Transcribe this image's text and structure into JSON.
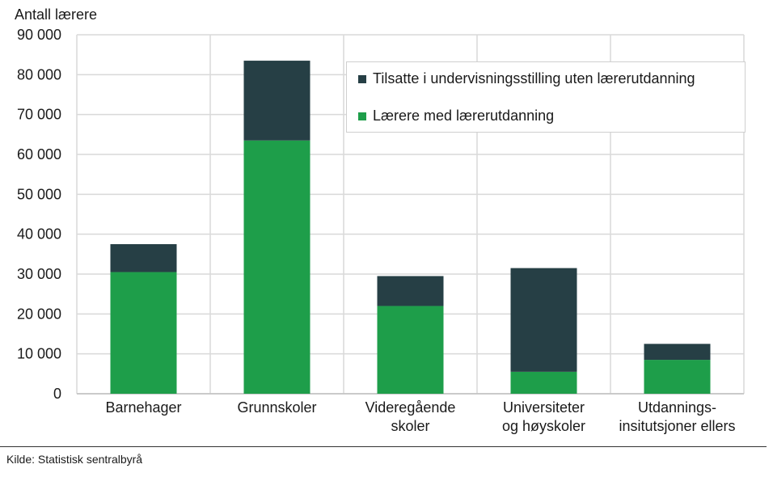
{
  "chart_data": {
    "type": "bar",
    "stacked": true,
    "ylabel": "Antall lærere",
    "ylim": [
      0,
      90000
    ],
    "yticks": [
      0,
      10000,
      20000,
      30000,
      40000,
      50000,
      60000,
      70000,
      80000,
      90000
    ],
    "ytick_labels": [
      "0",
      "10 000",
      "20 000",
      "30 000",
      "40 000",
      "50 000",
      "60 000",
      "70 000",
      "80 000",
      "90 000"
    ],
    "categories": [
      [
        "Barnehager"
      ],
      [
        "Grunnskoler"
      ],
      [
        "Videregående",
        "skoler"
      ],
      [
        "Universiteter",
        "og høyskoler"
      ],
      [
        "Utdannings-",
        "insitutsjoner ellers"
      ]
    ],
    "series": [
      {
        "name": "Lærere med lærerutdanning",
        "color": "#1e9e4a",
        "values": [
          30500,
          63500,
          22000,
          5500,
          8500
        ]
      },
      {
        "name": "Tilsatte i undervisningsstilling uten lærerutdanning",
        "color": "#263f45",
        "values": [
          7000,
          20000,
          7500,
          26000,
          4000
        ]
      }
    ],
    "grid": true,
    "legend_position": "top-right"
  },
  "source": "Kilde: Statistisk sentralbyrå"
}
